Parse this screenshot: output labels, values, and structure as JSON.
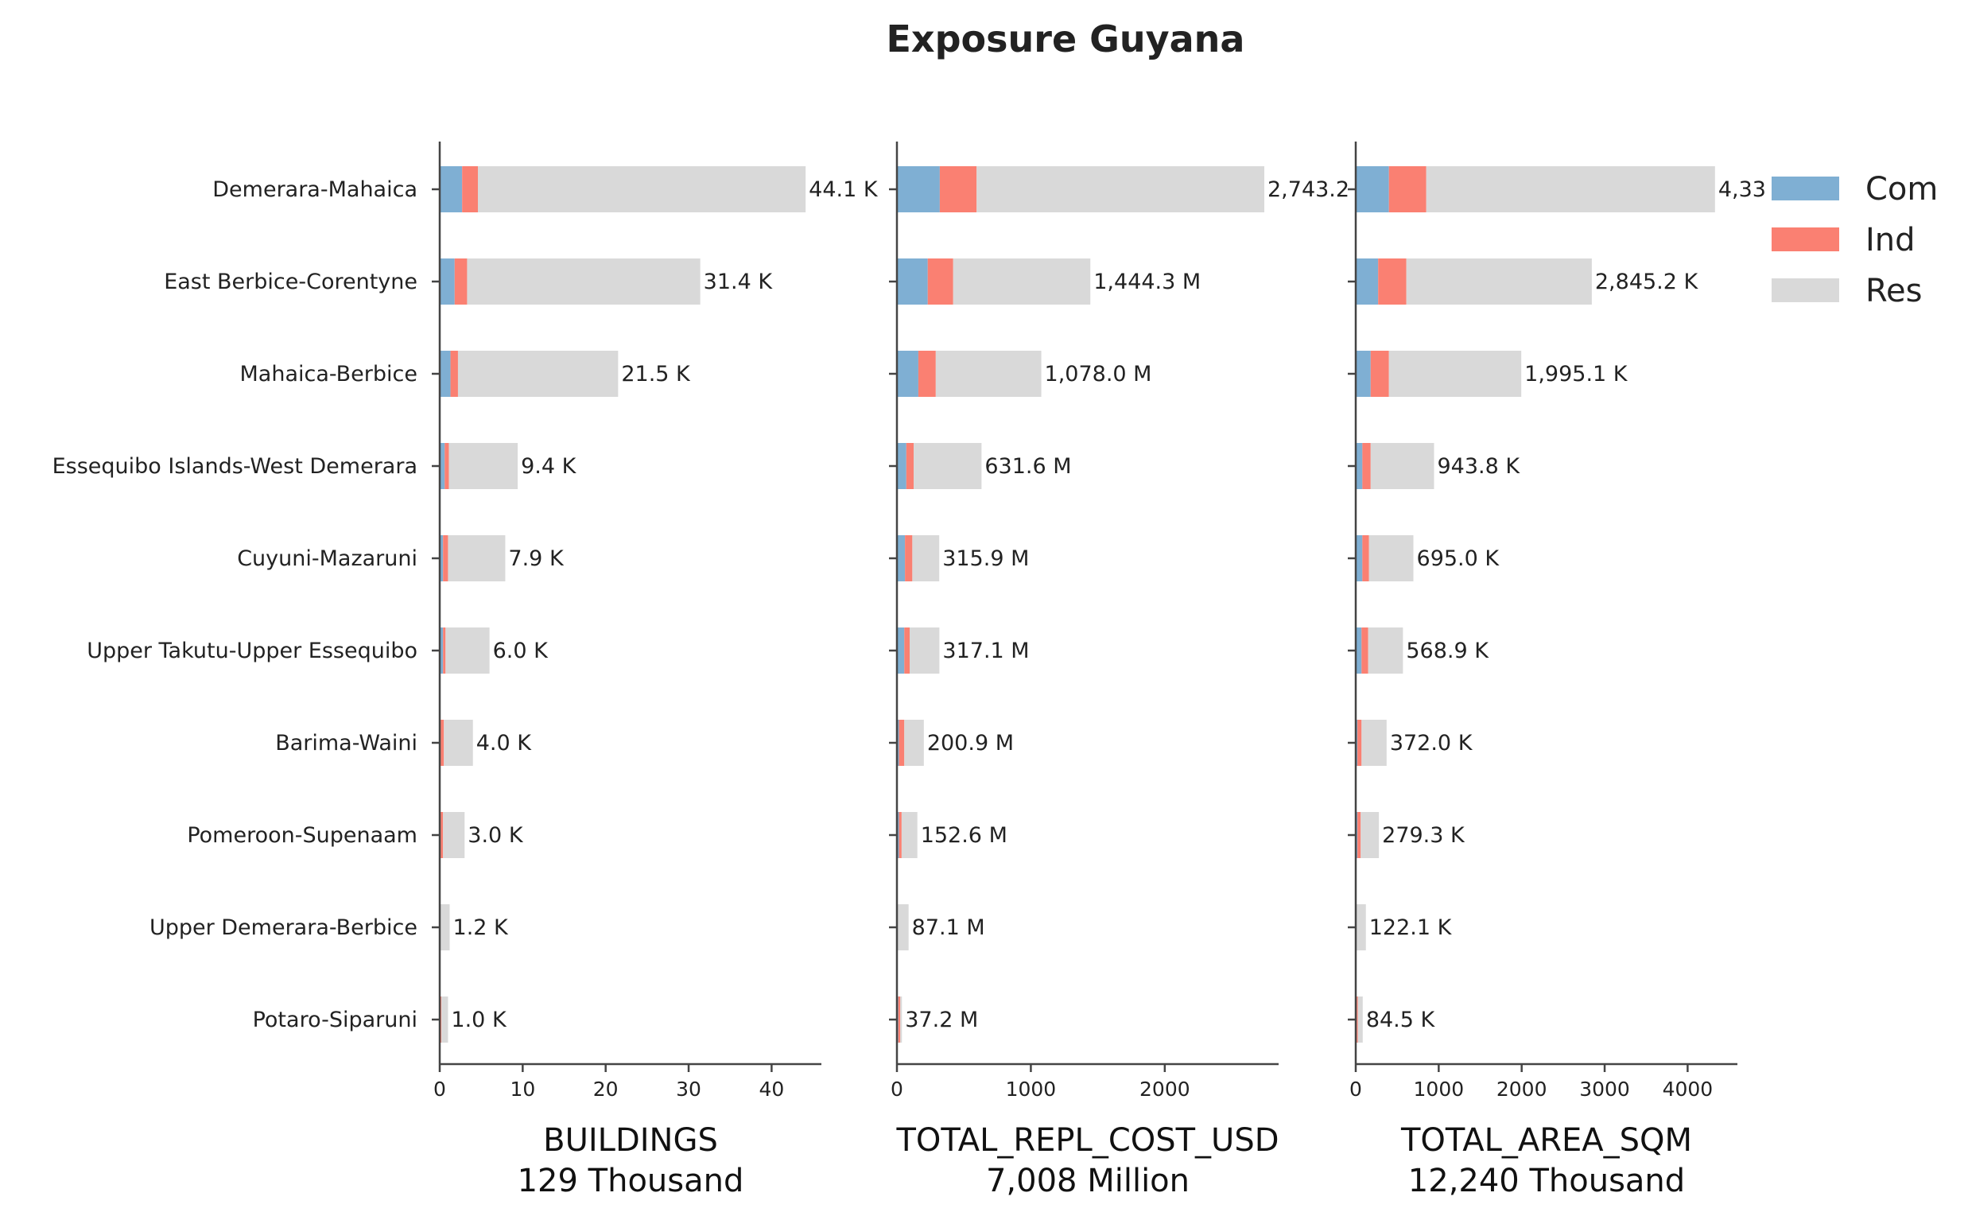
{
  "chart_data": {
    "type": "bar",
    "title": "Exposure Guyana",
    "categories": [
      "Demerara-Mahaica",
      "East Berbice-Corentyne",
      "Mahaica-Berbice",
      "Essequibo Islands-West Demerara",
      "Cuyuni-Mazaruni",
      "Upper Takutu-Upper Essequibo",
      "Barima-Waini",
      "Pomeroon-Supenaam",
      "Upper Demerara-Berbice",
      "Potaro-Siparuni"
    ],
    "legend": {
      "placement": "top-right",
      "items": [
        {
          "name": "Com",
          "color": "#7FAFD3"
        },
        {
          "name": "Ind",
          "color": "#FA8072"
        },
        {
          "name": "Res",
          "color": "#D9D9D9"
        }
      ]
    },
    "panels": [
      {
        "xlabel": "BUILDINGS",
        "total": "129 Thousand",
        "xlim": [
          0,
          46
        ],
        "xticks": [
          0,
          10,
          20,
          30,
          40
        ],
        "xtick_labels": [
          "0",
          "10",
          "20",
          "30",
          "40"
        ],
        "series": [
          {
            "name": "Com",
            "values": [
              2.7,
              1.8,
              1.3,
              0.6,
              0.4,
              0.4,
              0.1,
              0.1,
              0.0,
              0.1
            ]
          },
          {
            "name": "Ind",
            "values": [
              1.9,
              1.5,
              0.9,
              0.5,
              0.6,
              0.3,
              0.4,
              0.3,
              0.0,
              0.1
            ]
          },
          {
            "name": "Res",
            "values": [
              39.5,
              28.1,
              19.3,
              8.3,
              6.9,
              5.3,
              3.5,
              2.6,
              1.2,
              0.8
            ]
          }
        ],
        "totals_labels": [
          "44.1 K",
          "31.4 K",
          "21.5 K",
          "9.4 K",
          "7.9 K",
          "6.0 K",
          "4.0 K",
          "3.0 K",
          "1.2 K",
          "1.0 K"
        ]
      },
      {
        "xlabel": "TOTAL_REPL_COST_USD",
        "total": "7,008 Million",
        "xlim": [
          0,
          2850
        ],
        "xticks": [
          0,
          1000,
          2000
        ],
        "xtick_labels": [
          "0",
          "1000",
          "2000"
        ],
        "series": [
          {
            "name": "Com",
            "values": [
              320,
              230,
              160,
              70,
              60,
              55,
              15,
              15,
              0,
              10
            ]
          },
          {
            "name": "Ind",
            "values": [
              275,
              190,
              130,
              55,
              55,
              40,
              40,
              20,
              0,
              15
            ]
          },
          {
            "name": "Res",
            "values": [
              2148.2,
              1024.3,
              788.0,
              506.6,
              200.9,
              222.1,
              145.9,
              117.6,
              87.1,
              12.2
            ]
          }
        ],
        "totals_labels": [
          "2,743.2",
          "1,444.3 M",
          "1,078.0 M",
          "631.6 M",
          "315.9 M",
          "317.1 M",
          "200.9 M",
          "152.6 M",
          "87.1 M",
          "37.2 M"
        ]
      },
      {
        "xlabel": "TOTAL_AREA_SQM",
        "total": "12,240 Thousand",
        "xlim": [
          0,
          4600
        ],
        "xticks": [
          0,
          1000,
          2000,
          3000,
          4000
        ],
        "xtick_labels": [
          "0",
          "1000",
          "2000",
          "3000",
          "4000"
        ],
        "series": [
          {
            "name": "Com",
            "values": [
              400,
              270,
              180,
              80,
              80,
              70,
              20,
              20,
              0,
              10
            ]
          },
          {
            "name": "Ind",
            "values": [
              450,
              340,
              220,
              100,
              80,
              80,
              50,
              40,
              0,
              15
            ]
          },
          {
            "name": "Res",
            "values": [
              3480,
              2235.2,
              1595.1,
              763.8,
              535.0,
              418.9,
              302.0,
              219.3,
              122.1,
              59.5
            ]
          }
        ],
        "totals_labels": [
          "4,33",
          "2,845.2 K",
          "1,995.1 K",
          "943.8 K",
          "695.0 K",
          "568.9 K",
          "372.0 K",
          "279.3 K",
          "122.1 K",
          "84.5 K"
        ]
      }
    ]
  }
}
